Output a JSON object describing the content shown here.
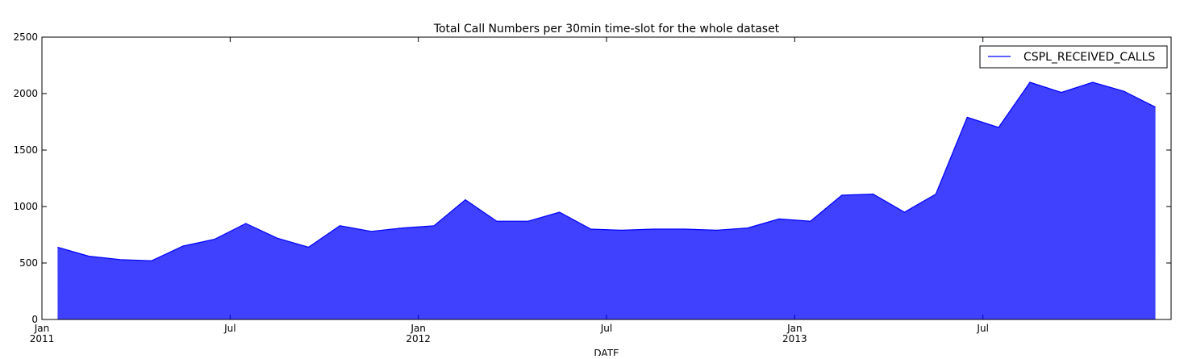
{
  "chart_data": {
    "type": "line",
    "title": "Total Call Numbers per 30min time-slot for the whole dataset",
    "xlabel": "DATE",
    "x": [
      "2011-01",
      "2011-02",
      "2011-03",
      "2011-04",
      "2011-05",
      "2011-06",
      "2011-07",
      "2011-08",
      "2011-09",
      "2011-10",
      "2011-11",
      "2011-12",
      "2012-01",
      "2012-02",
      "2012-03",
      "2012-04",
      "2012-05",
      "2012-06",
      "2012-07",
      "2012-08",
      "2012-09",
      "2012-10",
      "2012-11",
      "2012-12",
      "2013-01",
      "2013-02",
      "2013-03",
      "2013-04",
      "2013-05",
      "2013-06",
      "2013-07",
      "2013-08",
      "2013-09",
      "2013-10",
      "2013-11",
      "2013-12"
    ],
    "series": [
      {
        "name": "CSPL_RECEIVED_CALLS",
        "color": "#0000ff",
        "values": [
          640,
          560,
          530,
          520,
          650,
          710,
          850,
          720,
          640,
          830,
          780,
          810,
          830,
          1060,
          870,
          870,
          950,
          800,
          790,
          800,
          800,
          790,
          810,
          890,
          870,
          1100,
          1110,
          950,
          1110,
          1790,
          1700,
          2100,
          2010,
          2100,
          2020,
          1880
        ]
      }
    ],
    "xlim": [
      "2011-01",
      "2014-01"
    ],
    "xticks": [
      {
        "value": "2011-01",
        "label": "Jan\n2011"
      },
      {
        "value": "2011-07",
        "label": "Jul"
      },
      {
        "value": "2012-01",
        "label": "Jan\n2012"
      },
      {
        "value": "2012-07",
        "label": "Jul"
      },
      {
        "value": "2013-01",
        "label": "Jan\n2013"
      },
      {
        "value": "2013-07",
        "label": "Jul"
      }
    ],
    "ylim": [
      0,
      2500
    ],
    "yticks": [
      0,
      500,
      1000,
      1500,
      2000,
      2500
    ],
    "legend": "upper right"
  }
}
